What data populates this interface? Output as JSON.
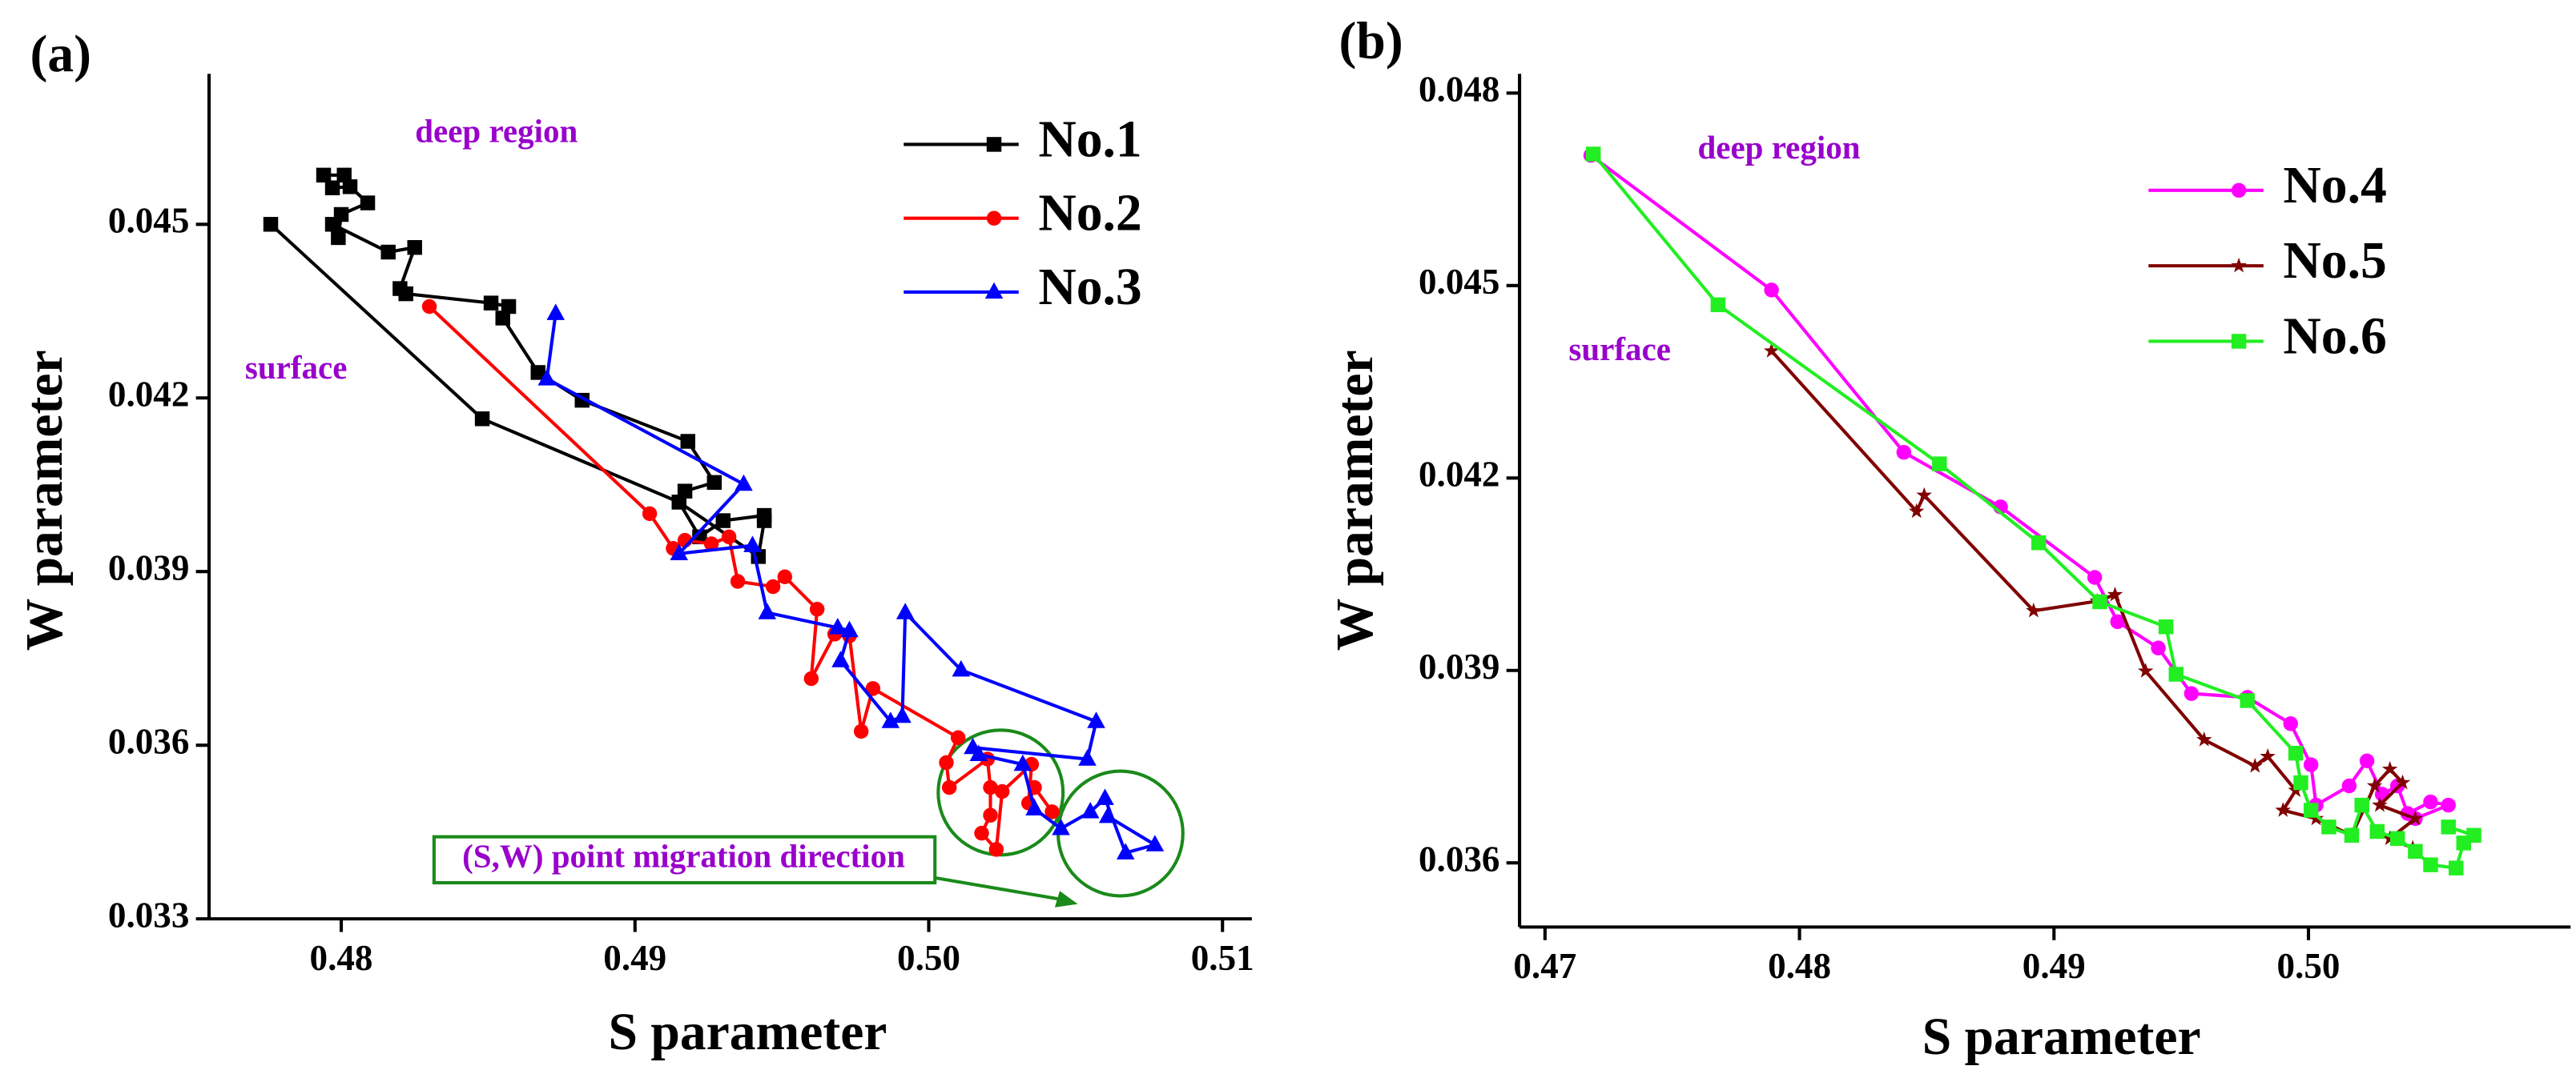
{
  "chart_data": [
    {
      "type": "line",
      "title": "(a)",
      "xlabel": "S parameter",
      "ylabel": "W parameter",
      "xlim": [
        0.4755,
        0.511
      ],
      "ylim": [
        0.033,
        0.0476
      ],
      "xticks": [
        0.48,
        0.49,
        {
          "value": 0.5,
          "label": "0.50"
        },
        0.51
      ],
      "yticks": [
        0.033,
        0.036,
        0.039,
        0.042,
        0.045
      ],
      "legend": "upper right",
      "annotations": [
        "deep region",
        "surface",
        "(S,W) point migration direction"
      ],
      "series": [
        {
          "name": "No.1",
          "color": "#000000",
          "marker": "square",
          "x": [
            0.4794,
            0.4801,
            0.4797,
            0.4803,
            0.4809,
            0.48,
            0.4799,
            0.4797,
            0.4816,
            0.4825,
            0.482,
            0.4822,
            0.4851,
            0.4857,
            0.4855,
            0.4867,
            0.4882,
            0.4918,
            0.4927,
            0.4917,
            0.4915,
            0.4922,
            0.493,
            0.4944,
            0.4944,
            0.4942,
            0.4915,
            0.4848,
            0.4776
          ],
          "values": [
            0.04585,
            0.04585,
            0.04563,
            0.04565,
            0.04537,
            0.04517,
            0.04477,
            0.045,
            0.04452,
            0.0446,
            0.04389,
            0.0438,
            0.04364,
            0.04358,
            0.04338,
            0.04244,
            0.04196,
            0.04125,
            0.04054,
            0.04039,
            0.0402,
            0.0396,
            0.03988,
            0.03997,
            0.03988,
            0.03926,
            0.0402,
            0.04164,
            0.045
          ]
        },
        {
          "name": "No.2",
          "color": "#ff0000",
          "marker": "circle",
          "x": [
            0.483,
            0.4905,
            0.4913,
            0.4917,
            0.4926,
            0.4932,
            0.4935,
            0.4947,
            0.4951,
            0.4962,
            0.496,
            0.4968,
            0.4973,
            0.4977,
            0.4981,
            0.501,
            0.5006,
            0.5007,
            0.502,
            0.5021,
            0.5021,
            0.5018,
            0.5023,
            0.5025,
            0.5035,
            0.5034,
            0.5036,
            0.5042
          ],
          "values": [
            0.04358,
            0.04,
            0.0394,
            0.03954,
            0.03948,
            0.0396,
            0.03883,
            0.03874,
            0.03891,
            0.03835,
            0.03715,
            0.03792,
            0.03789,
            0.03624,
            0.03698,
            0.03613,
            0.0357,
            0.03527,
            0.03576,
            0.03527,
            0.03479,
            0.03448,
            0.0342,
            0.0352,
            0.03567,
            0.035,
            0.03527,
            0.03485
          ]
        },
        {
          "name": "No.3",
          "color": "#0000ff",
          "marker": "triangle",
          "x": [
            0.4873,
            0.487,
            0.4937,
            0.4915,
            0.494,
            0.4945,
            0.4969,
            0.4973,
            0.497,
            0.4987,
            0.4991,
            0.4992,
            0.5011,
            0.5057,
            0.5054,
            0.5015,
            0.5017,
            0.5032,
            0.5036,
            0.5045,
            0.5055,
            0.506,
            0.5067,
            0.5077,
            0.5061
          ],
          "values": [
            0.04346,
            0.04233,
            0.04051,
            0.03931,
            0.03945,
            0.03829,
            0.03803,
            0.03798,
            0.03746,
            0.03641,
            0.0365,
            0.03829,
            0.0373,
            0.03641,
            0.03576,
            0.03596,
            0.03584,
            0.03567,
            0.0349,
            0.03456,
            0.03485,
            0.03508,
            0.03414,
            0.03428,
            0.03477
          ]
        }
      ]
    },
    {
      "type": "line",
      "title": "(b)",
      "xlabel": "S parameter",
      "ylabel": "W parameter",
      "xlim": [
        0.469,
        0.5103
      ],
      "ylim": [
        0.035,
        0.0483
      ],
      "xticks": [
        0.47,
        0.48,
        0.49,
        {
          "value": 0.5,
          "label": "0.50"
        }
      ],
      "yticks": [
        0.036,
        0.039,
        0.042,
        0.045,
        0.048
      ],
      "legend": "upper right",
      "annotations": [
        "deep region",
        "surface"
      ],
      "series": [
        {
          "name": "No.4",
          "color": "#ff00ff",
          "marker": "circle",
          "x": [
            0.4718,
            0.4789,
            0.4841,
            0.4879,
            0.4916,
            0.4925,
            0.4941,
            0.4954,
            0.4976,
            0.4993,
            0.5001,
            0.5003,
            0.5016,
            0.5023,
            0.5029,
            0.5035,
            0.5039,
            0.5048,
            0.5055,
            0.5042
          ],
          "values": [
            0.04703,
            0.04493,
            0.0424,
            0.04155,
            0.04045,
            0.03976,
            0.03935,
            0.03864,
            0.03858,
            0.03817,
            0.03753,
            0.0369,
            0.0372,
            0.03759,
            0.03707,
            0.0372,
            0.03677,
            0.03695,
            0.0369,
            0.03669
          ]
        },
        {
          "name": "No.5",
          "color": "#800000",
          "marker": "star",
          "x": [
            0.4789,
            0.4846,
            0.4849,
            0.4892,
            0.4917,
            0.4924,
            0.4936,
            0.4959,
            0.4979,
            0.4984,
            0.4995,
            0.499,
            0.5003,
            0.5017,
            0.5026,
            0.5032,
            0.5037,
            0.5028,
            0.5042,
            0.5032,
            0.5041
          ],
          "values": [
            0.04398,
            0.04148,
            0.04173,
            0.03993,
            0.04008,
            0.04018,
            0.03899,
            0.03792,
            0.03751,
            0.03766,
            0.03713,
            0.03682,
            0.03669,
            0.03643,
            0.0372,
            0.03746,
            0.03725,
            0.0369,
            0.03669,
            0.03638,
            0.03623
          ]
        },
        {
          "name": "No.6",
          "color": "#22ee22",
          "marker": "square",
          "x": [
            0.4719,
            0.4768,
            0.4855,
            0.4894,
            0.4918,
            0.4944,
            0.4948,
            0.4976,
            0.4995,
            0.4997,
            0.5001,
            0.5008,
            0.5017,
            0.5021,
            0.5027,
            0.5035,
            0.5042,
            0.5048,
            0.5058,
            0.5061,
            0.5065,
            0.5055
          ],
          "values": [
            0.04705,
            0.0447,
            0.04222,
            0.04099,
            0.04007,
            0.03968,
            0.03894,
            0.03853,
            0.03771,
            0.03725,
            0.03682,
            0.03656,
            0.03643,
            0.0369,
            0.03649,
            0.03638,
            0.03618,
            0.03597,
            0.03592,
            0.03631,
            0.03643,
            0.03656
          ]
        }
      ]
    }
  ]
}
